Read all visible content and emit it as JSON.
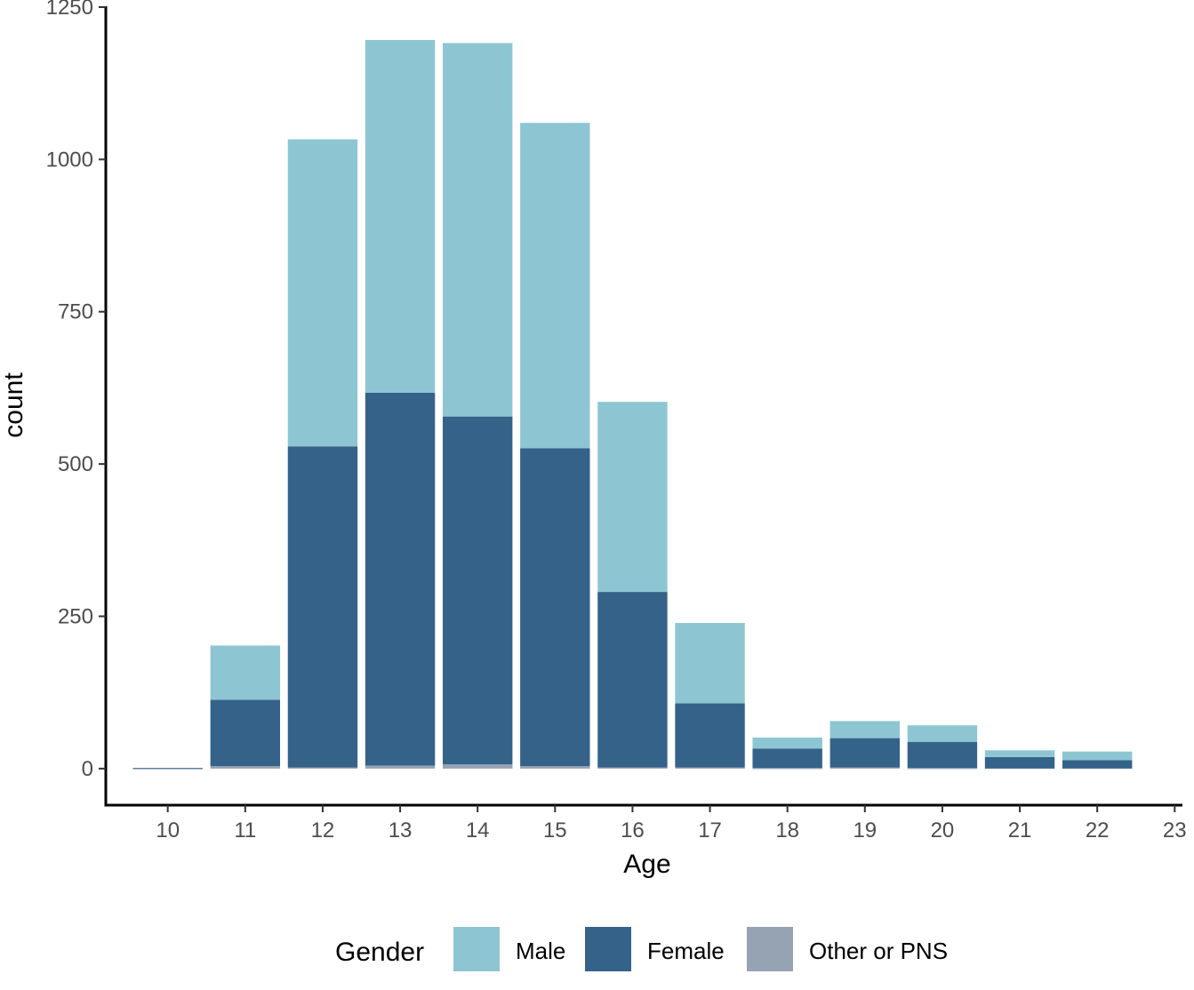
{
  "chart_data": {
    "type": "bar",
    "stacked": true,
    "categories": [
      "10",
      "11",
      "12",
      "13",
      "14",
      "15",
      "16",
      "17",
      "18",
      "19",
      "20",
      "21",
      "22"
    ],
    "series": [
      {
        "name": "Other or PNS",
        "color": "#96a3b3",
        "values": [
          0,
          4,
          2,
          5,
          7,
          4,
          2,
          2,
          1,
          2,
          1,
          0,
          0
        ]
      },
      {
        "name": "Female",
        "color": "#356289",
        "values": [
          1,
          109,
          527,
          612,
          571,
          522,
          288,
          105,
          32,
          48,
          43,
          19,
          14
        ]
      },
      {
        "name": "Male",
        "color": "#8dc6d2",
        "values": [
          0,
          89,
          504,
          579,
          613,
          534,
          312,
          132,
          18,
          28,
          27,
          11,
          14
        ]
      }
    ],
    "xlabel": "Age",
    "ylabel": "count",
    "yticks": [
      0,
      250,
      500,
      750,
      1000,
      1250
    ],
    "xticks": [
      "10",
      "11",
      "12",
      "13",
      "14",
      "15",
      "16",
      "17",
      "18",
      "19",
      "20",
      "21",
      "22",
      "23"
    ],
    "ylim": [
      -60,
      1250
    ],
    "xlim": [
      9.2,
      23.1
    ],
    "legend": {
      "title": "Gender",
      "placement": "bottom",
      "items": [
        {
          "label": "Male",
          "color": "#8dc6d2"
        },
        {
          "label": "Female",
          "color": "#356289"
        },
        {
          "label": "Other or PNS",
          "color": "#96a3b3"
        }
      ]
    }
  }
}
